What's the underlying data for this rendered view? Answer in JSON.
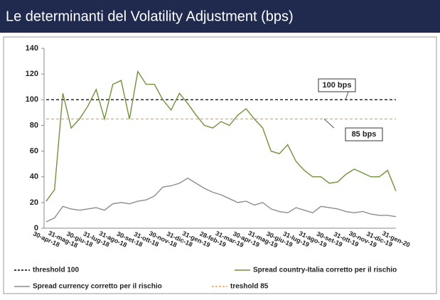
{
  "chart_data": {
    "type": "line",
    "title": "Le determinanti del Volatility Adjustment (bps)",
    "categories": [
      "30-apr-18",
      null,
      "31-mag-18",
      null,
      "30-giu-18",
      null,
      "31-lug-18",
      null,
      "31-ago-18",
      null,
      "30-set-18",
      null,
      "31-ott-18",
      null,
      "30-nov-18",
      null,
      "31-dic-18",
      null,
      "31-gen-19",
      null,
      "28-feb-19",
      null,
      "31-mar-19",
      null,
      "30-apr-19",
      null,
      "31-mag-19",
      null,
      "30-giu-19",
      null,
      "31-lug-19",
      null,
      "31-ago-19",
      null,
      "30-set-19",
      null,
      "31-ott-19",
      null,
      "30-nov-19",
      null,
      "31-dic-19",
      null,
      "31-gen-20"
    ],
    "series": [
      {
        "name": "threshold 100",
        "color": "#000000",
        "dashed": true,
        "values": [
          100,
          100,
          100,
          100,
          100,
          100,
          100,
          100,
          100,
          100,
          100,
          100,
          100,
          100,
          100,
          100,
          100,
          100,
          100,
          100,
          100,
          100,
          100,
          100,
          100,
          100,
          100,
          100,
          100,
          100,
          100,
          100,
          100,
          100,
          100,
          100,
          100,
          100,
          100,
          100,
          100,
          100,
          100
        ]
      },
      {
        "name": "Spread country-Italia corretto per il rischio",
        "color": "#70913a",
        "dashed": false,
        "values": [
          21,
          30,
          105,
          78,
          85,
          95,
          108,
          85,
          112,
          115,
          85,
          122,
          112,
          112,
          100,
          92,
          105,
          97,
          88,
          80,
          78,
          83,
          80,
          88,
          93,
          85,
          78,
          60,
          58,
          65,
          52,
          45,
          40,
          40,
          35,
          36,
          42,
          46,
          43,
          40,
          40,
          45,
          29
        ]
      },
      {
        "name": "Spread currency corretto per il rischio",
        "color": "#8c8c8c",
        "dashed": false,
        "values": [
          5,
          8,
          17,
          15,
          14,
          15,
          16,
          14,
          19,
          20,
          19,
          21,
          22,
          25,
          32,
          33,
          35,
          39,
          35,
          31,
          28,
          26,
          23,
          20,
          21,
          18,
          20,
          15,
          13,
          12,
          16,
          14,
          12,
          17,
          16,
          15,
          13,
          12,
          13,
          11,
          10,
          10,
          9
        ]
      },
      {
        "name": "treshold 85",
        "color": "#f4a460",
        "dashed": true,
        "values": [
          85,
          85,
          85,
          85,
          85,
          85,
          85,
          85,
          85,
          85,
          85,
          85,
          85,
          85,
          85,
          85,
          85,
          85,
          85,
          85,
          85,
          85,
          85,
          85,
          85,
          85,
          85,
          85,
          85,
          85,
          85,
          85,
          85,
          85,
          85,
          85,
          85,
          85,
          85,
          85,
          85,
          85,
          85
        ]
      }
    ],
    "ylim": [
      0,
      140
    ],
    "yticks": [
      0,
      20,
      40,
      60,
      80,
      100,
      120,
      140
    ],
    "annotations": [
      {
        "text": "100 bps",
        "series": 0
      },
      {
        "text": "85 bps",
        "series": 3
      }
    ]
  }
}
